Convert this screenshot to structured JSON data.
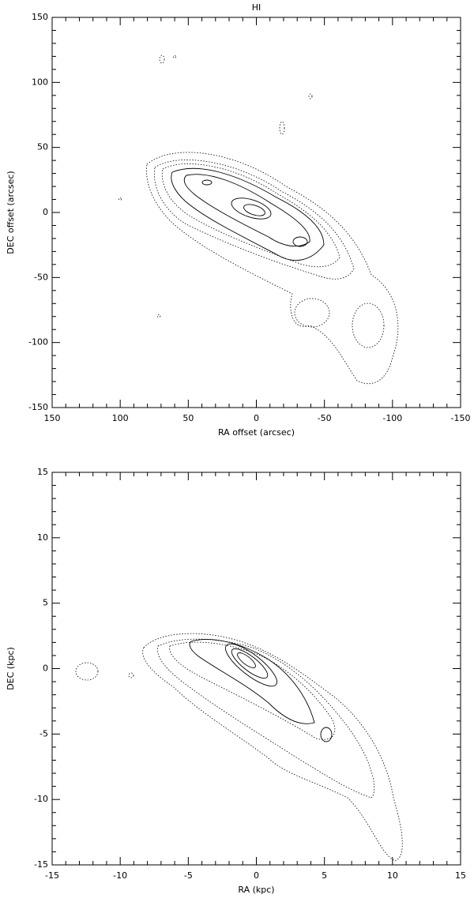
{
  "chart_data": [
    {
      "type": "contour",
      "title": "HI",
      "x_label": "RA offset (arcsec)",
      "y_label": "DEC offset (arcsec)",
      "xlim": [
        150,
        -150
      ],
      "ylim": [
        -150,
        150
      ],
      "xticks": [
        150,
        100,
        50,
        0,
        -50,
        -100,
        -150
      ],
      "yticks": [
        -150,
        -100,
        -50,
        0,
        50,
        100,
        150
      ]
    },
    {
      "type": "contour",
      "x_label": "RA (kpc)",
      "y_label": "DEC (kpc)",
      "xlim": [
        -15,
        15
      ],
      "ylim": [
        -15,
        15
      ],
      "xticks": [
        -15,
        -10,
        -5,
        0,
        5,
        10,
        15
      ],
      "yticks": [
        -15,
        -10,
        -5,
        0,
        5,
        10,
        15
      ]
    }
  ]
}
